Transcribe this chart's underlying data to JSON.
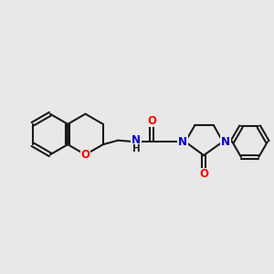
{
  "bg_color": "#e8e8e8",
  "bond_color": "#1a1a1a",
  "bond_width": 1.5,
  "atom_colors": {
    "O": "#ff0000",
    "N": "#0000cd",
    "C": "#1a1a1a",
    "H": "#1a1a1a"
  },
  "font_size_atom": 8.5,
  "figsize": [
    3.0,
    3.0
  ],
  "dpi": 100
}
